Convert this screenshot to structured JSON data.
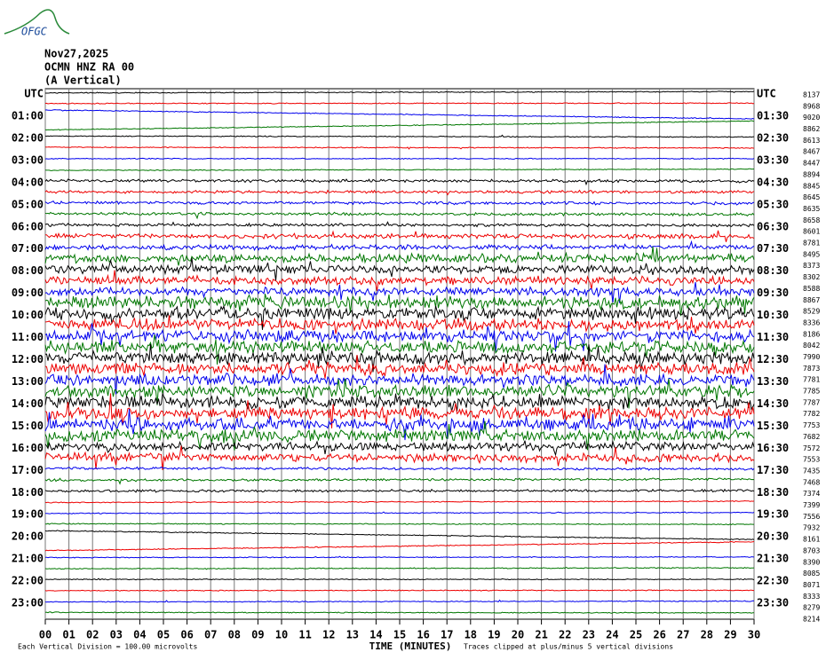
{
  "header": {
    "logo": "OFGC",
    "date": "Nov27,2025",
    "station": "OCMN HNZ RA 00",
    "component": "(A Vertical)"
  },
  "left_labels": [
    "UTC",
    "01:00",
    "02:00",
    "03:00",
    "04:00",
    "05:00",
    "06:00",
    "07:00",
    "08:00",
    "09:00",
    "10:00",
    "11:00",
    "12:00",
    "13:00",
    "14:00",
    "15:00",
    "16:00",
    "17:00",
    "18:00",
    "19:00",
    "20:00",
    "21:00",
    "22:00",
    "23:00"
  ],
  "right_labels": [
    "UTC",
    "01:30",
    "02:30",
    "03:30",
    "04:30",
    "05:30",
    "06:30",
    "07:30",
    "08:30",
    "09:30",
    "10:30",
    "11:30",
    "12:30",
    "13:30",
    "14:30",
    "15:30",
    "16:30",
    "17:30",
    "18:30",
    "19:30",
    "20:30",
    "21:30",
    "22:30",
    "23:30"
  ],
  "right_values": [
    "8137",
    "8968",
    "9020",
    "8862",
    "8613",
    "8467",
    "8447",
    "8894",
    "8845",
    "8645",
    "8635",
    "8658",
    "8601",
    "8781",
    "8495",
    "8373",
    "8302",
    "8588",
    "8867",
    "8529",
    "8336",
    "8186",
    "8042",
    "7990",
    "7873",
    "7781",
    "7785",
    "7787",
    "7782",
    "7753",
    "7682",
    "7572",
    "7553",
    "7435",
    "7468",
    "7374",
    "7399",
    "7556",
    "7932",
    "8161",
    "8703",
    "8390",
    "8085",
    "8071",
    "8333",
    "8279",
    "8214"
  ],
  "x_labels": [
    "00",
    "01",
    "02",
    "03",
    "04",
    "05",
    "06",
    "07",
    "08",
    "09",
    "10",
    "11",
    "12",
    "13",
    "14",
    "15",
    "16",
    "17",
    "18",
    "19",
    "20",
    "21",
    "22",
    "23",
    "24",
    "25",
    "26",
    "27",
    "28",
    "29",
    "30"
  ],
  "footer": {
    "scale": "Each Vertical Division =  100.00 microvolts",
    "axis": "TIME (MINUTES)",
    "clip": "Traces clipped at plus/minus 5 vertical divisions"
  }
}
